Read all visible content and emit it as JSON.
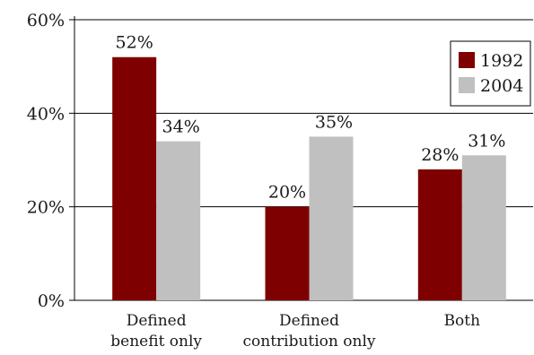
{
  "chart_data": {
    "type": "bar",
    "categories": [
      [
        "Defined",
        "benefit only"
      ],
      [
        "Defined",
        "contribution only"
      ],
      [
        "Both"
      ]
    ],
    "series": [
      {
        "name": "1992",
        "values": [
          52,
          20,
          28
        ],
        "labels": [
          "52%",
          "20%",
          "28%"
        ],
        "color": "#7f0000"
      },
      {
        "name": "2004",
        "values": [
          34,
          35,
          31
        ],
        "labels": [
          "34%",
          "35%",
          "31%"
        ],
        "color": "#c0c0c0"
      }
    ],
    "y_ticks": [
      {
        "value": 0,
        "label": "0%"
      },
      {
        "value": 20,
        "label": "20%"
      },
      {
        "value": 40,
        "label": "40%"
      },
      {
        "value": 60,
        "label": "60%"
      }
    ],
    "ylim": [
      0,
      60
    ],
    "grid": true,
    "legend_position": "top-right",
    "title": "",
    "xlabel": "",
    "ylabel": ""
  }
}
